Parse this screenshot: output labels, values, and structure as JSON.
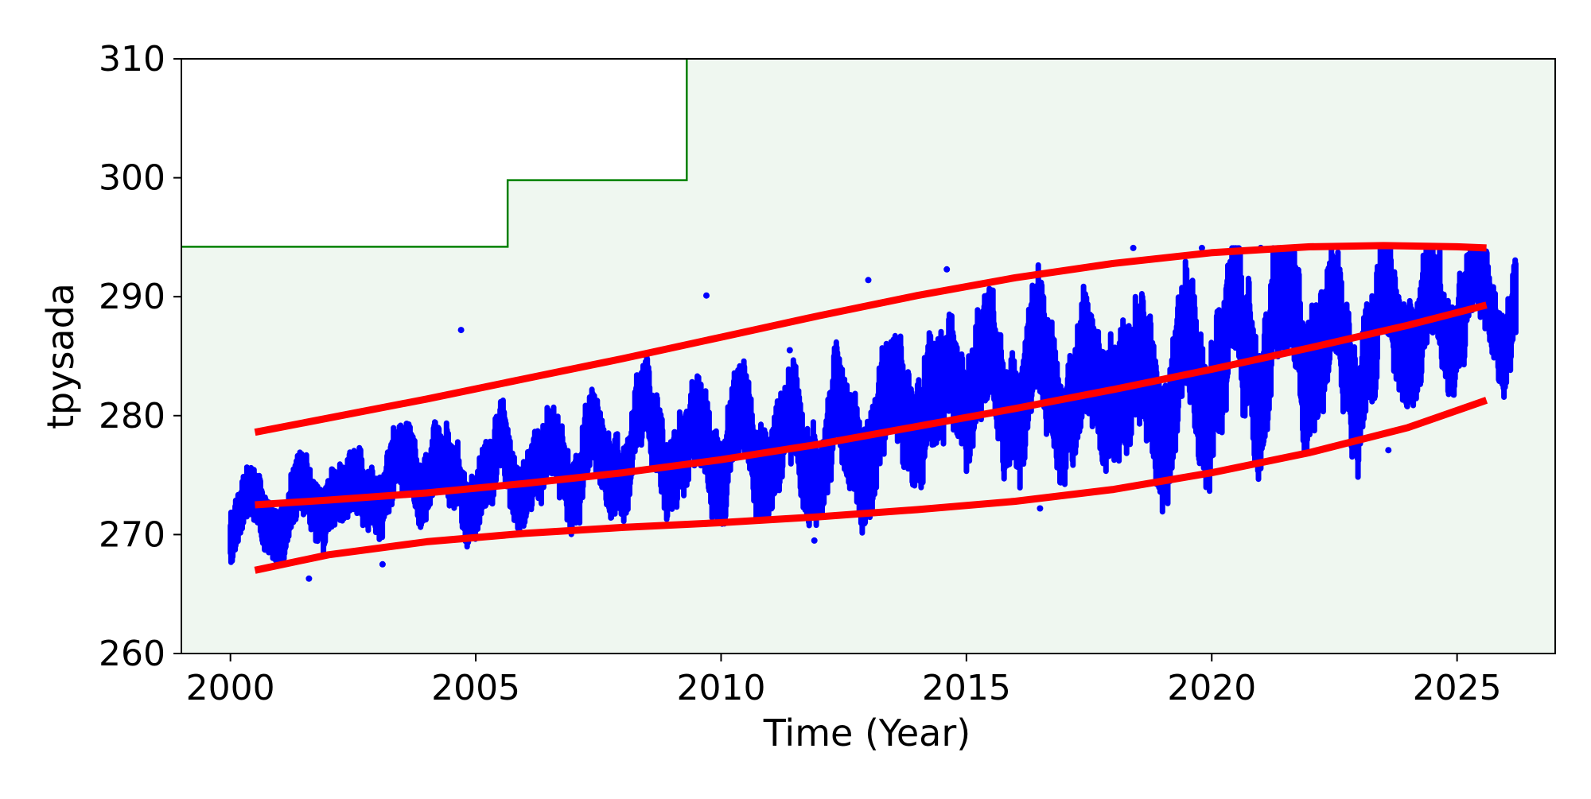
{
  "chart_data": {
    "type": "scatter",
    "title": "",
    "xlabel": "Time (Year)",
    "ylabel": "tpysada",
    "xlim": [
      1999.0,
      2027.0
    ],
    "ylim": [
      260,
      310
    ],
    "x_ticks": [
      2000,
      2005,
      2010,
      2015,
      2020,
      2025
    ],
    "y_ticks": [
      260,
      270,
      280,
      290,
      300,
      310
    ],
    "x_tick_labels": [
      "2000",
      "2005",
      "2010",
      "2015",
      "2020",
      "2025"
    ],
    "y_tick_labels": [
      "260",
      "270",
      "280",
      "290",
      "300",
      "310"
    ],
    "grid": false,
    "legend": "none",
    "colors": {
      "points": "#0000ff",
      "trend": "#ff0000",
      "threshold": "#008000",
      "region_fill": "#eff7f0",
      "background": "#ffffff"
    },
    "threshold_step": {
      "x": [
        1999.0,
        2005.65,
        2005.65,
        2009.3,
        2009.3
      ],
      "y": [
        294.2,
        294.2,
        299.8,
        299.8,
        310
      ]
    },
    "trend_lines": [
      {
        "role": "upper",
        "x": [
          2000.5,
          2002,
          2004,
          2006,
          2008,
          2010,
          2012,
          2014,
          2016,
          2018,
          2020,
          2022,
          2023.5,
          2025,
          2025.6
        ],
        "y": [
          278.6,
          279.8,
          281.4,
          283.1,
          284.8,
          286.6,
          288.4,
          290.1,
          291.6,
          292.8,
          293.7,
          294.2,
          294.3,
          294.2,
          294.1
        ]
      },
      {
        "role": "mean",
        "x": [
          2000.5,
          2002,
          2004,
          2006,
          2008,
          2010,
          2012,
          2014,
          2016,
          2018,
          2020,
          2022,
          2024,
          2025.6
        ],
        "y": [
          272.5,
          272.9,
          273.5,
          274.3,
          275.2,
          276.3,
          277.6,
          279.1,
          280.6,
          282.2,
          283.9,
          285.7,
          287.6,
          289.3
        ]
      },
      {
        "role": "lower",
        "x": [
          2000.5,
          2002,
          2004,
          2006,
          2008,
          2010,
          2012,
          2014,
          2016,
          2018,
          2020,
          2022,
          2024,
          2025.6
        ],
        "y": [
          267.0,
          268.3,
          269.4,
          270.1,
          270.6,
          271.0,
          271.5,
          272.1,
          272.8,
          273.8,
          275.2,
          276.9,
          279.0,
          281.3
        ]
      }
    ],
    "scatter_envelope": {
      "x": [
        2000.0,
        2002,
        2004,
        2006,
        2008,
        2010,
        2012,
        2014,
        2016,
        2018,
        2020,
        2022,
        2024,
        2026.2
      ],
      "center": [
        271.0,
        273.0,
        274.5,
        275.5,
        276.5,
        277.5,
        278.0,
        280.0,
        281.5,
        283.0,
        284.5,
        286.5,
        287.5,
        289.5
      ],
      "spread": [
        3.0,
        3.5,
        4.0,
        4.0,
        4.5,
        5.0,
        5.5,
        6.0,
        6.5,
        7.0,
        7.5,
        7.0,
        6.0,
        4.5
      ],
      "ymax": 294.1,
      "ymin": 266.3
    },
    "scatter_outliers": [
      {
        "x": 2001.6,
        "y": 266.3
      },
      {
        "x": 2004.7,
        "y": 287.2
      },
      {
        "x": 2009.7,
        "y": 290.1
      },
      {
        "x": 2013.0,
        "y": 291.4
      },
      {
        "x": 2014.6,
        "y": 292.3
      },
      {
        "x": 2018.4,
        "y": 294.1
      },
      {
        "x": 2019.8,
        "y": 294.1
      },
      {
        "x": 2021.0,
        "y": 294.1
      },
      {
        "x": 2023.5,
        "y": 294.1
      },
      {
        "x": 2003.1,
        "y": 267.5
      },
      {
        "x": 2011.9,
        "y": 269.5
      },
      {
        "x": 2016.5,
        "y": 272.2
      },
      {
        "x": 2023.6,
        "y": 277.1
      },
      {
        "x": 2011.4,
        "y": 285.5
      }
    ]
  }
}
